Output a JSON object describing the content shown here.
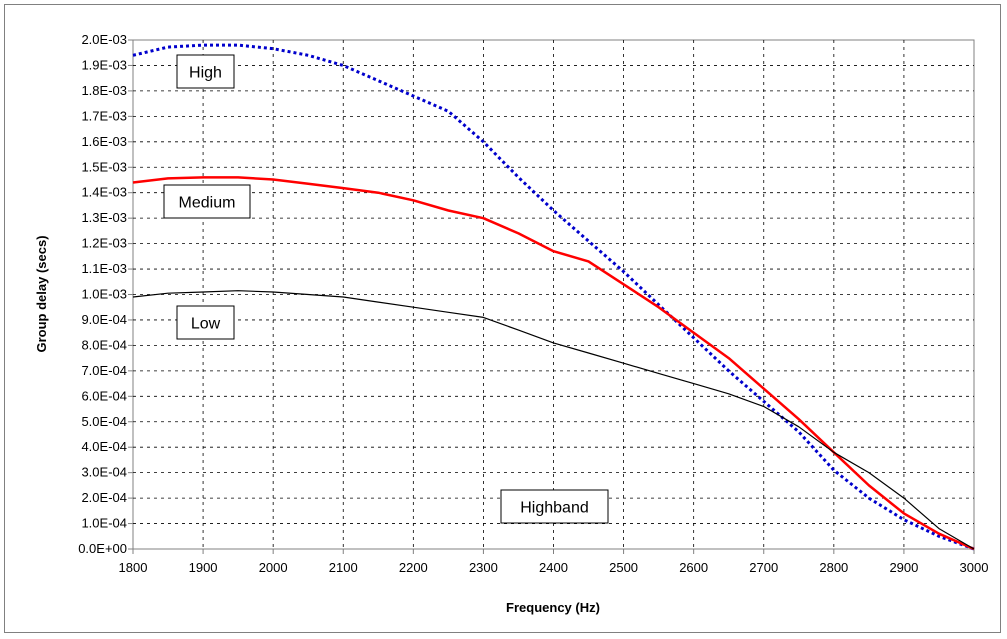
{
  "chart_data": {
    "type": "line",
    "title": "",
    "xlabel": "Frequency (Hz)",
    "ylabel": "Group delay  (secs)",
    "xlim": [
      1800,
      3000
    ],
    "ylim": [
      0,
      0.002
    ],
    "x_ticks": [
      "1800",
      "1900",
      "2000",
      "2100",
      "2200",
      "2300",
      "2400",
      "2500",
      "2600",
      "2700",
      "2800",
      "2900",
      "3000"
    ],
    "y_ticks": [
      "0.0E+00",
      "1.0E-04",
      "2.0E-04",
      "3.0E-04",
      "4.0E-04",
      "5.0E-04",
      "6.0E-04",
      "7.0E-04",
      "8.0E-04",
      "9.0E-04",
      "1.0E-03",
      "1.1E-03",
      "1.2E-03",
      "1.3E-03",
      "1.4E-03",
      "1.5E-03",
      "1.6E-03",
      "1.7E-03",
      "1.8E-03",
      "1.9E-03",
      "2.0E-03"
    ],
    "grid": true,
    "series": [
      {
        "name": "High",
        "color": "#0000cc",
        "style": "dotted",
        "x": [
          1800,
          1850,
          1900,
          1950,
          2000,
          2050,
          2100,
          2150,
          2200,
          2250,
          2300,
          2350,
          2400,
          2450,
          2500,
          2550,
          2600,
          2650,
          2700,
          2750,
          2800,
          2850,
          2900,
          2950,
          3000
        ],
        "values": [
          0.00194,
          0.001972,
          0.00198,
          0.00198,
          0.001966,
          0.00194,
          0.0019,
          0.00184,
          0.00178,
          0.00172,
          0.0016,
          0.00146,
          0.00133,
          0.00121,
          0.00109,
          0.00096,
          0.00083,
          0.0007,
          0.00058,
          0.00046,
          0.00031,
          0.0002,
          0.000115,
          5e-05,
          0.0
        ]
      },
      {
        "name": "Medium",
        "color": "#ff0000",
        "style": "solid",
        "x": [
          1800,
          1850,
          1900,
          1950,
          2000,
          2050,
          2100,
          2150,
          2200,
          2250,
          2300,
          2350,
          2400,
          2450,
          2500,
          2550,
          2600,
          2650,
          2700,
          2750,
          2800,
          2850,
          2900,
          2950,
          3000
        ],
        "values": [
          0.00144,
          0.001456,
          0.00146,
          0.00146,
          0.001452,
          0.001435,
          0.001418,
          0.0014,
          0.00137,
          0.00133,
          0.0013,
          0.00124,
          0.00117,
          0.00113,
          0.00104,
          0.00095,
          0.00085,
          0.00075,
          0.00063,
          0.00051,
          0.00038,
          0.00025,
          0.00014,
          6e-05,
          0.0
        ]
      },
      {
        "name": "Low",
        "color": "#000000",
        "style": "solid",
        "x": [
          1800,
          1850,
          1900,
          1950,
          2000,
          2050,
          2100,
          2150,
          2200,
          2250,
          2300,
          2350,
          2400,
          2450,
          2500,
          2550,
          2600,
          2650,
          2700,
          2750,
          2800,
          2850,
          2900,
          2950,
          3000
        ],
        "values": [
          0.00099,
          0.001005,
          0.00101,
          0.001015,
          0.00101,
          0.001,
          0.00099,
          0.00097,
          0.00095,
          0.00093,
          0.00091,
          0.00086,
          0.00081,
          0.00077,
          0.00073,
          0.00069,
          0.00065,
          0.00061,
          0.00056,
          0.00048,
          0.00038,
          0.0003,
          0.0002,
          8e-05,
          0.0
        ]
      }
    ],
    "annotations": [
      "High",
      "Medium",
      "Low",
      "Highband"
    ]
  }
}
